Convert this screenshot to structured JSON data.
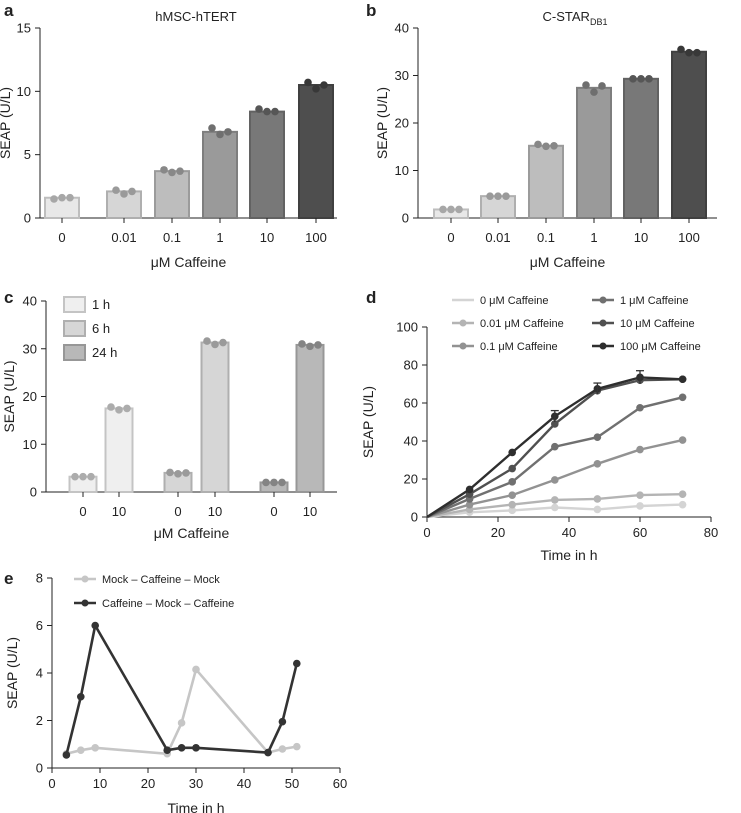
{
  "chart_data": [
    {
      "panel": "a",
      "type": "bar",
      "title": "hMSC-hTERT",
      "xlabel": "μM Caffeine",
      "ylabel": "SEAP (U/L)",
      "ylim": [
        0,
        15
      ],
      "yticks": [
        "0",
        "5",
        "10",
        "15"
      ],
      "categories": [
        "0",
        "0.01",
        "0.1",
        "1",
        "10",
        "100"
      ],
      "values": [
        1.6,
        2.1,
        3.7,
        6.8,
        8.4,
        10.5
      ],
      "points": [
        [
          1.5,
          1.6,
          1.6
        ],
        [
          2.2,
          1.9,
          2.1
        ],
        [
          3.8,
          3.6,
          3.7
        ],
        [
          7.1,
          6.6,
          6.8
        ],
        [
          8.6,
          8.4,
          8.4
        ],
        [
          10.7,
          10.2,
          10.5
        ]
      ],
      "colors": [
        "#e8e8e8",
        "#d6d6d6",
        "#bdbdbd",
        "#9a9a9a",
        "#787878",
        "#4e4e4e"
      ]
    },
    {
      "panel": "b",
      "type": "bar",
      "title": "C-STAR",
      "title_sub": "DB1",
      "xlabel": "μM Caffeine",
      "ylabel": "SEAP (U/L)",
      "ylim": [
        0,
        40
      ],
      "yticks": [
        "0",
        "10",
        "20",
        "30",
        "40"
      ],
      "categories": [
        "0",
        "0.01",
        "0.1",
        "1",
        "10",
        "100"
      ],
      "values": [
        1.8,
        4.6,
        15.2,
        27.4,
        29.3,
        35.0
      ],
      "points": [
        [
          1.8,
          1.8,
          1.8
        ],
        [
          4.6,
          4.6,
          4.6
        ],
        [
          15.5,
          15.1,
          15.2
        ],
        [
          28.0,
          26.5,
          27.8
        ],
        [
          29.3,
          29.3,
          29.3
        ],
        [
          35.5,
          34.8,
          34.8
        ]
      ],
      "colors": [
        "#e8e8e8",
        "#d6d6d6",
        "#bdbdbd",
        "#9a9a9a",
        "#787878",
        "#4e4e4e"
      ]
    },
    {
      "panel": "c",
      "type": "bar",
      "xlabel": "μM Caffeine",
      "ylabel": "SEAP (U/L)",
      "ylim": [
        0,
        40
      ],
      "yticks": [
        "0",
        "10",
        "20",
        "30",
        "40"
      ],
      "categories": [
        "0",
        "10",
        "0",
        "10",
        "0",
        "10"
      ],
      "groups": [
        "1 h",
        "6 h",
        "24 h"
      ],
      "values": [
        3.2,
        17.5,
        4.0,
        31.3,
        2.0,
        30.8
      ],
      "points": [
        [
          3.2,
          3.2,
          3.2
        ],
        [
          17.8,
          17.2,
          17.5
        ],
        [
          4.1,
          3.8,
          4.0
        ],
        [
          31.6,
          30.9,
          31.3
        ],
        [
          2.0,
          2.0,
          2.0
        ],
        [
          31.0,
          30.5,
          30.8
        ]
      ],
      "colors": [
        "#efefef",
        "#d6d6d6",
        "#b8b8b8"
      ]
    },
    {
      "panel": "d",
      "type": "line",
      "xlabel": "Time in h",
      "ylabel": "SEAP (U/L)",
      "xlim": [
        0,
        80
      ],
      "ylim": [
        0,
        100
      ],
      "xticks": [
        "0",
        "20",
        "40",
        "60",
        "80"
      ],
      "yticks": [
        "0",
        "20",
        "40",
        "60",
        "80",
        "100"
      ],
      "x": [
        0,
        12,
        24,
        36,
        48,
        60,
        72
      ],
      "series": [
        {
          "name": "0 μM Caffeine",
          "values": [
            0,
            2.5,
            3.5,
            5.0,
            4.0,
            5.8,
            6.5
          ],
          "color": "#d4d4d4"
        },
        {
          "name": "0.01 μM Caffeine",
          "values": [
            0,
            4.0,
            6.5,
            9.0,
            9.5,
            11.5,
            12.0
          ],
          "color": "#b4b4b4"
        },
        {
          "name": "0.1 μM Caffeine",
          "values": [
            0,
            6.5,
            11.5,
            19.5,
            28.0,
            35.5,
            40.5
          ],
          "color": "#929292"
        },
        {
          "name": "1 μM Caffeine",
          "values": [
            0,
            9.5,
            18.5,
            37.0,
            42.0,
            57.5,
            63.0
          ],
          "color": "#707070"
        },
        {
          "name": "10 μM Caffeine",
          "values": [
            0,
            12.0,
            25.5,
            49.0,
            66.5,
            72.0,
            72.5
          ],
          "color": "#505050"
        },
        {
          "name": "100 μM Caffeine",
          "values": [
            0,
            14.5,
            34.0,
            53.0,
            67.5,
            73.5,
            72.5
          ],
          "color": "#2e2e2e"
        }
      ]
    },
    {
      "panel": "e",
      "type": "line",
      "xlabel": "Time in h",
      "ylabel": "SEAP (U/L)",
      "xlim": [
        0,
        60
      ],
      "ylim": [
        0,
        8
      ],
      "xticks": [
        "0",
        "10",
        "20",
        "30",
        "40",
        "50",
        "60"
      ],
      "yticks": [
        "0",
        "2",
        "4",
        "6",
        "8"
      ],
      "series": [
        {
          "name": "Mock – Caffeine – Mock",
          "x": [
            3,
            6,
            9,
            24,
            27,
            30,
            45,
            48,
            51
          ],
          "values": [
            0.6,
            0.75,
            0.85,
            0.6,
            1.9,
            4.15,
            0.65,
            0.8,
            0.9
          ],
          "color": "#c6c6c6"
        },
        {
          "name": "Caffeine – Mock – Caffeine",
          "x": [
            3,
            6,
            9,
            24,
            27,
            30,
            45,
            48,
            51
          ],
          "values": [
            0.55,
            3.0,
            6.0,
            0.75,
            0.85,
            0.85,
            0.65,
            1.95,
            4.4
          ],
          "color": "#333333"
        }
      ]
    }
  ],
  "panels": {
    "a": "a",
    "b": "b",
    "c": "c",
    "d": "d",
    "e": "e"
  }
}
